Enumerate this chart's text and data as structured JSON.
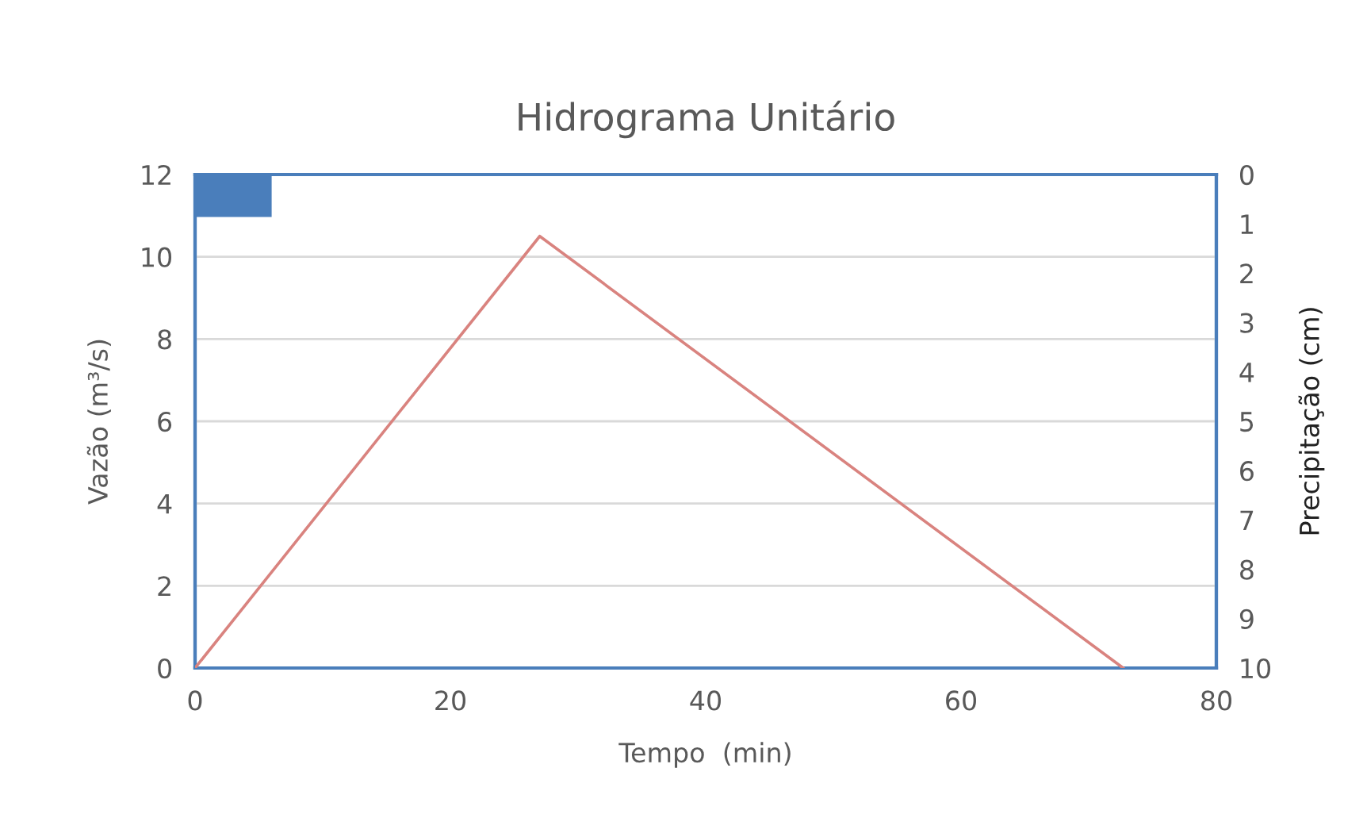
{
  "chart_data": {
    "type": "line",
    "title": "Hidrograma Unitário",
    "xlabel": "Tempo  (min)",
    "ylabel": "Vazão (m³/s)",
    "y2label": "Precipitação (cm)",
    "series": [
      {
        "color": "#d9837f",
        "x": [
          0,
          27,
          72.7
        ],
        "values": [
          0,
          10.5,
          0
        ]
      },
      {
        "type": "histogram",
        "axis": "y2",
        "color": "#4a7ebb",
        "bins": [
          0,
          6
        ],
        "values": [
          0.86
        ]
      }
    ],
    "xlim": [
      0,
      80
    ],
    "xticks": [
      0,
      20,
      40,
      60,
      80
    ],
    "ylim": [
      0,
      12
    ],
    "yticks": [
      0,
      2,
      4,
      6,
      8,
      10,
      12
    ],
    "y2lim": [
      10,
      0
    ],
    "y2ticks": [
      0,
      1,
      2,
      3,
      4,
      5,
      6,
      7,
      8,
      9,
      10
    ],
    "grid": "y",
    "legend": false
  }
}
